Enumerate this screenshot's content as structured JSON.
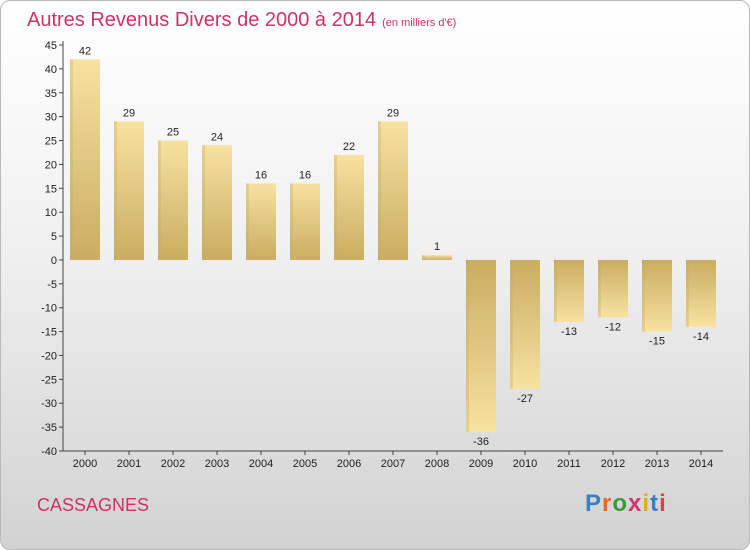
{
  "header": {
    "title": "Autres Revenus Divers de 2000 à 2014",
    "unit": "(en milliers d'€)"
  },
  "footer": {
    "commune": "CASSAGNES",
    "logo": {
      "text": "Proxiti",
      "letter_colors": [
        "#3a7fc4",
        "#e8681e",
        "#3a9a3a",
        "#d6326e",
        "#e8a81e",
        "#3a7fc4",
        "#e04040"
      ]
    }
  },
  "chart_data": {
    "type": "bar",
    "categories": [
      "2000",
      "2001",
      "2002",
      "2003",
      "2004",
      "2005",
      "2006",
      "2007",
      "2008",
      "2009",
      "2010",
      "2011",
      "2012",
      "2013",
      "2014"
    ],
    "values": [
      42,
      29,
      25,
      24,
      16,
      16,
      22,
      29,
      1,
      -36,
      -27,
      -13,
      -12,
      -15,
      -14
    ],
    "data_labels": [
      "42",
      "29",
      "25",
      "24",
      "16",
      "16",
      "22",
      "29",
      "1",
      "-36",
      "-27",
      "-13",
      "-12",
      "-15",
      "-14"
    ],
    "ylim": [
      -40,
      45
    ],
    "yticks": [
      45,
      40,
      35,
      30,
      25,
      20,
      15,
      10,
      5,
      0,
      -5,
      -10,
      -15,
      -20,
      -25,
      -30,
      -35,
      -40
    ],
    "grid": false,
    "bar_colors": {
      "light": "#f7e2a0",
      "dark": "#c9ad62"
    },
    "xlabel": "",
    "ylabel": ""
  }
}
